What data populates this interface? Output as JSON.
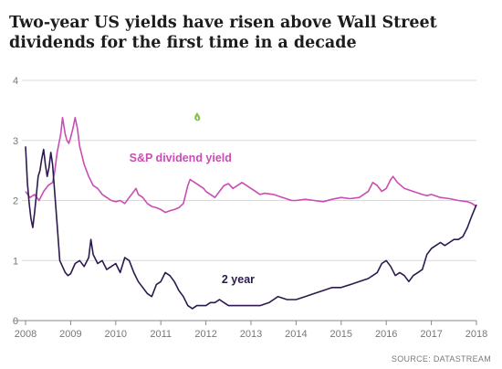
{
  "title": "Two-year US yields have risen above Wall Street dividends for the first time in a decade",
  "source": "SOURCE: DATASTREAM",
  "colors": {
    "sp": "#c94db3",
    "two_year": "#2c1a4f",
    "grid": "#d9d9d9",
    "axis": "#888888"
  },
  "chart_data": {
    "type": "line",
    "title": "Two-year US yields have risen above Wall Street dividends for the first time in a decade",
    "xlabel": "",
    "ylabel": "",
    "xlim": [
      2008,
      2018
    ],
    "ylim": [
      0,
      4
    ],
    "x_ticks": [
      "2008",
      "2009",
      "2010",
      "2011",
      "2012",
      "2013",
      "2014",
      "2015",
      "2016",
      "2017",
      "2018"
    ],
    "y_ticks": [
      "0",
      "1",
      "2",
      "3",
      "4"
    ],
    "grid": "horizontal",
    "legend": "inline labels",
    "series": [
      {
        "name": "S&P dividend yield",
        "label_at": [
          2010.3,
          2.65
        ],
        "points": [
          [
            2008.0,
            2.15
          ],
          [
            2008.1,
            2.05
          ],
          [
            2008.2,
            2.1
          ],
          [
            2008.3,
            2.0
          ],
          [
            2008.4,
            2.15
          ],
          [
            2008.5,
            2.25
          ],
          [
            2008.6,
            2.3
          ],
          [
            2008.65,
            2.5
          ],
          [
            2008.7,
            2.8
          ],
          [
            2008.78,
            3.1
          ],
          [
            2008.82,
            3.38
          ],
          [
            2008.88,
            3.1
          ],
          [
            2008.92,
            3.0
          ],
          [
            2008.96,
            2.95
          ],
          [
            2009.0,
            3.05
          ],
          [
            2009.05,
            3.2
          ],
          [
            2009.1,
            3.38
          ],
          [
            2009.15,
            3.2
          ],
          [
            2009.2,
            2.9
          ],
          [
            2009.3,
            2.6
          ],
          [
            2009.4,
            2.4
          ],
          [
            2009.5,
            2.25
          ],
          [
            2009.6,
            2.2
          ],
          [
            2009.7,
            2.1
          ],
          [
            2009.8,
            2.05
          ],
          [
            2009.9,
            2.0
          ],
          [
            2010.0,
            1.98
          ],
          [
            2010.1,
            2.0
          ],
          [
            2010.2,
            1.95
          ],
          [
            2010.3,
            2.05
          ],
          [
            2010.4,
            2.15
          ],
          [
            2010.45,
            2.2
          ],
          [
            2010.5,
            2.1
          ],
          [
            2010.6,
            2.05
          ],
          [
            2010.7,
            1.95
          ],
          [
            2010.8,
            1.9
          ],
          [
            2010.9,
            1.88
          ],
          [
            2011.0,
            1.85
          ],
          [
            2011.1,
            1.8
          ],
          [
            2011.2,
            1.83
          ],
          [
            2011.3,
            1.85
          ],
          [
            2011.4,
            1.88
          ],
          [
            2011.5,
            1.95
          ],
          [
            2011.6,
            2.25
          ],
          [
            2011.65,
            2.35
          ],
          [
            2011.75,
            2.3
          ],
          [
            2011.85,
            2.25
          ],
          [
            2011.95,
            2.2
          ],
          [
            2012.0,
            2.15
          ],
          [
            2012.1,
            2.1
          ],
          [
            2012.2,
            2.05
          ],
          [
            2012.3,
            2.15
          ],
          [
            2012.4,
            2.25
          ],
          [
            2012.5,
            2.28
          ],
          [
            2012.6,
            2.2
          ],
          [
            2012.7,
            2.25
          ],
          [
            2012.8,
            2.3
          ],
          [
            2012.9,
            2.25
          ],
          [
            2013.0,
            2.2
          ],
          [
            2013.1,
            2.15
          ],
          [
            2013.2,
            2.1
          ],
          [
            2013.3,
            2.12
          ],
          [
            2013.5,
            2.1
          ],
          [
            2013.7,
            2.05
          ],
          [
            2013.9,
            2.0
          ],
          [
            2014.0,
            2.0
          ],
          [
            2014.2,
            2.02
          ],
          [
            2014.4,
            2.0
          ],
          [
            2014.6,
            1.98
          ],
          [
            2014.8,
            2.02
          ],
          [
            2015.0,
            2.05
          ],
          [
            2015.2,
            2.03
          ],
          [
            2015.4,
            2.05
          ],
          [
            2015.6,
            2.15
          ],
          [
            2015.7,
            2.3
          ],
          [
            2015.8,
            2.25
          ],
          [
            2015.9,
            2.15
          ],
          [
            2016.0,
            2.2
          ],
          [
            2016.1,
            2.35
          ],
          [
            2016.15,
            2.4
          ],
          [
            2016.25,
            2.3
          ],
          [
            2016.4,
            2.2
          ],
          [
            2016.6,
            2.15
          ],
          [
            2016.8,
            2.1
          ],
          [
            2016.9,
            2.08
          ],
          [
            2017.0,
            2.1
          ],
          [
            2017.2,
            2.05
          ],
          [
            2017.4,
            2.03
          ],
          [
            2017.6,
            2.0
          ],
          [
            2017.8,
            1.98
          ],
          [
            2017.9,
            1.95
          ],
          [
            2018.0,
            1.9
          ]
        ]
      },
      {
        "name": "2 year",
        "label_at": [
          2012.35,
          0.62
        ],
        "points": [
          [
            2008.0,
            2.9
          ],
          [
            2008.04,
            2.3
          ],
          [
            2008.08,
            1.95
          ],
          [
            2008.12,
            1.7
          ],
          [
            2008.16,
            1.55
          ],
          [
            2008.2,
            1.8
          ],
          [
            2008.24,
            2.1
          ],
          [
            2008.28,
            2.4
          ],
          [
            2008.32,
            2.5
          ],
          [
            2008.36,
            2.7
          ],
          [
            2008.4,
            2.85
          ],
          [
            2008.44,
            2.6
          ],
          [
            2008.48,
            2.4
          ],
          [
            2008.52,
            2.55
          ],
          [
            2008.56,
            2.8
          ],
          [
            2008.6,
            2.6
          ],
          [
            2008.64,
            2.2
          ],
          [
            2008.7,
            1.6
          ],
          [
            2008.76,
            1.0
          ],
          [
            2008.82,
            0.9
          ],
          [
            2008.88,
            0.8
          ],
          [
            2008.94,
            0.75
          ],
          [
            2009.0,
            0.78
          ],
          [
            2009.1,
            0.95
          ],
          [
            2009.2,
            1.0
          ],
          [
            2009.3,
            0.9
          ],
          [
            2009.4,
            1.05
          ],
          [
            2009.45,
            1.35
          ],
          [
            2009.5,
            1.1
          ],
          [
            2009.6,
            0.95
          ],
          [
            2009.7,
            1.0
          ],
          [
            2009.8,
            0.85
          ],
          [
            2009.9,
            0.9
          ],
          [
            2010.0,
            0.95
          ],
          [
            2010.1,
            0.8
          ],
          [
            2010.2,
            1.05
          ],
          [
            2010.3,
            1.0
          ],
          [
            2010.4,
            0.8
          ],
          [
            2010.5,
            0.65
          ],
          [
            2010.6,
            0.55
          ],
          [
            2010.7,
            0.45
          ],
          [
            2010.8,
            0.4
          ],
          [
            2010.9,
            0.6
          ],
          [
            2011.0,
            0.65
          ],
          [
            2011.1,
            0.8
          ],
          [
            2011.2,
            0.75
          ],
          [
            2011.3,
            0.65
          ],
          [
            2011.4,
            0.5
          ],
          [
            2011.5,
            0.4
          ],
          [
            2011.6,
            0.25
          ],
          [
            2011.7,
            0.2
          ],
          [
            2011.8,
            0.25
          ],
          [
            2011.9,
            0.25
          ],
          [
            2012.0,
            0.25
          ],
          [
            2012.1,
            0.3
          ],
          [
            2012.2,
            0.3
          ],
          [
            2012.3,
            0.35
          ],
          [
            2012.4,
            0.3
          ],
          [
            2012.5,
            0.25
          ],
          [
            2012.7,
            0.25
          ],
          [
            2012.9,
            0.25
          ],
          [
            2013.0,
            0.25
          ],
          [
            2013.2,
            0.25
          ],
          [
            2013.4,
            0.3
          ],
          [
            2013.5,
            0.35
          ],
          [
            2013.6,
            0.4
          ],
          [
            2013.8,
            0.35
          ],
          [
            2014.0,
            0.35
          ],
          [
            2014.2,
            0.4
          ],
          [
            2014.4,
            0.45
          ],
          [
            2014.6,
            0.5
          ],
          [
            2014.8,
            0.55
          ],
          [
            2015.0,
            0.55
          ],
          [
            2015.2,
            0.6
          ],
          [
            2015.4,
            0.65
          ],
          [
            2015.6,
            0.7
          ],
          [
            2015.8,
            0.8
          ],
          [
            2015.9,
            0.95
          ],
          [
            2016.0,
            1.0
          ],
          [
            2016.1,
            0.9
          ],
          [
            2016.2,
            0.75
          ],
          [
            2016.3,
            0.8
          ],
          [
            2016.4,
            0.75
          ],
          [
            2016.5,
            0.65
          ],
          [
            2016.6,
            0.75
          ],
          [
            2016.7,
            0.8
          ],
          [
            2016.8,
            0.85
          ],
          [
            2016.9,
            1.1
          ],
          [
            2017.0,
            1.2
          ],
          [
            2017.1,
            1.25
          ],
          [
            2017.2,
            1.3
          ],
          [
            2017.3,
            1.25
          ],
          [
            2017.4,
            1.3
          ],
          [
            2017.5,
            1.35
          ],
          [
            2017.6,
            1.35
          ],
          [
            2017.7,
            1.4
          ],
          [
            2017.8,
            1.55
          ],
          [
            2017.9,
            1.75
          ],
          [
            2018.0,
            1.93
          ]
        ]
      }
    ]
  }
}
